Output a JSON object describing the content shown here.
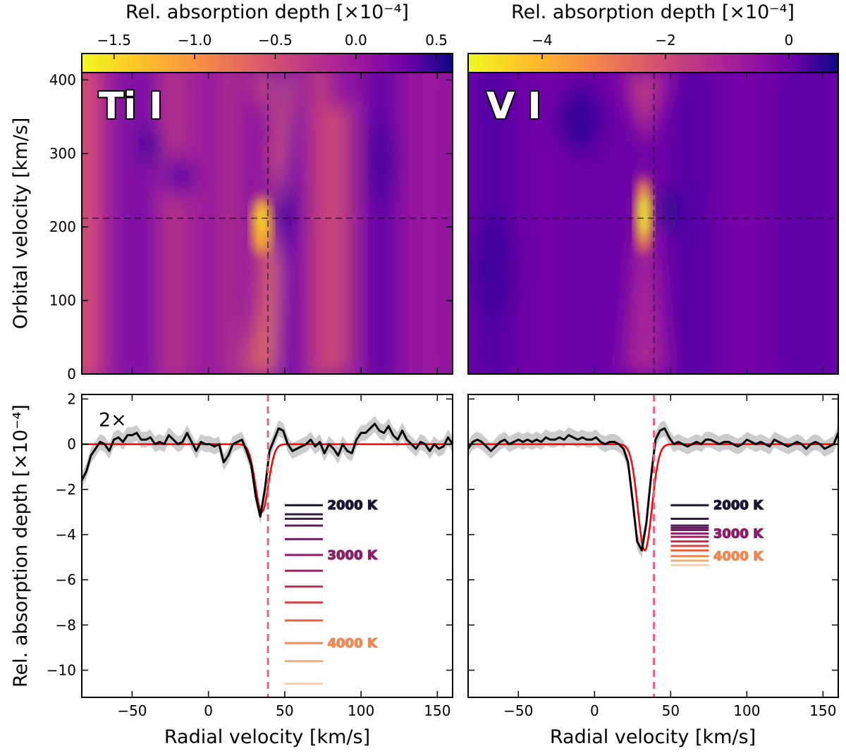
{
  "chart_data": [
    {
      "type": "heatmap",
      "panel": "top-left",
      "species": "Ti I",
      "xlabel": "Radial velocity [km/s]",
      "ylabel": "Orbital velocity [km/s]",
      "xlim": [
        -83,
        160
      ],
      "ylim": [
        0,
        410
      ],
      "yticks": [
        0,
        100,
        200,
        300,
        400
      ],
      "colorbar": {
        "label": "Rel. absorption depth [×10⁻⁴]",
        "range": [
          -1.7,
          0.6
        ],
        "ticks": [
          -1.5,
          -1.0,
          -0.5,
          0.0,
          0.5
        ],
        "tick_labels": [
          "−1.5",
          "−1.0",
          "−0.5",
          "0.0",
          "0.5"
        ],
        "colormap": "plasma_r"
      },
      "peak": {
        "x": 37,
        "y": 210,
        "depth": -1.7
      },
      "crosshair": {
        "x": 39,
        "y": 212
      }
    },
    {
      "type": "heatmap",
      "panel": "top-right",
      "species": "V I",
      "xlim": [
        -83,
        160
      ],
      "ylim": [
        0,
        410
      ],
      "colorbar": {
        "label": "Rel. absorption depth [×10⁻⁴]",
        "range": [
          -5.2,
          0.8
        ],
        "ticks": [
          -4,
          -2,
          0
        ],
        "tick_labels": [
          "−4",
          "−2",
          "0"
        ],
        "colormap": "plasma_r"
      },
      "peak": {
        "x": 33,
        "y": 210,
        "depth": -5.2
      },
      "crosshair": {
        "x": 39,
        "y": 212
      }
    },
    {
      "type": "line",
      "panel": "bottom-left",
      "annotation": "2×",
      "xlabel": "Radial velocity [km/s]",
      "ylabel": "Rel. absorption depth [×10⁻⁴]",
      "xlim": [
        -83,
        160
      ],
      "ylim": [
        -11.2,
        2.2
      ],
      "xticks": [
        -50,
        0,
        50,
        100,
        150
      ],
      "xtick_labels": [
        "−50",
        "0",
        "50",
        "100",
        "150"
      ],
      "yticks": [
        2,
        0,
        -2,
        -4,
        -6,
        -8,
        -10
      ],
      "ytick_labels": [
        "2",
        "0",
        "−2",
        "−4",
        "−6",
        "−8",
        "−10"
      ],
      "vline_x": 39,
      "series": [
        {
          "name": "observed",
          "x": [
            -83,
            -80,
            -77,
            -74,
            -71,
            -68,
            -65,
            -62,
            -59,
            -56,
            -53,
            -50,
            -47,
            -44,
            -41,
            -38,
            -35,
            -32,
            -29,
            -26,
            -23,
            -20,
            -17,
            -14,
            -11,
            -8,
            -5,
            -2,
            1,
            4,
            7,
            10,
            13,
            16,
            19,
            22,
            25,
            28,
            31,
            34,
            37,
            40,
            43,
            46,
            49,
            52,
            55,
            58,
            61,
            64,
            67,
            70,
            73,
            76,
            79,
            82,
            85,
            88,
            91,
            94,
            97,
            100,
            103,
            106,
            109,
            112,
            115,
            118,
            121,
            124,
            127,
            130,
            133,
            136,
            139,
            142,
            145,
            148,
            151,
            154,
            157,
            160
          ],
          "values": [
            -1.6,
            -1.2,
            -0.5,
            -0.2,
            0.1,
            0.0,
            -0.3,
            0.2,
            0.3,
            0.1,
            0.4,
            0.4,
            0.5,
            0.2,
            0.2,
            0.3,
            0.0,
            0.1,
            0.0,
            0.4,
            0.2,
            0.0,
            0.1,
            0.5,
            0.1,
            -0.3,
            0.1,
            0.0,
            0.0,
            -0.1,
            0.0,
            -0.8,
            -0.5,
            0.0,
            0.1,
            0.2,
            -0.3,
            -0.9,
            -2.3,
            -3.2,
            -2.0,
            -0.3,
            0.2,
            0.7,
            0.6,
            0.0,
            -0.3,
            -0.2,
            -0.1,
            0.0,
            0.2,
            -0.1,
            0.1,
            -0.4,
            0.0,
            -0.2,
            -0.5,
            0.0,
            -0.3,
            -0.4,
            0.2,
            0.5,
            0.5,
            0.7,
            0.9,
            0.6,
            0.5,
            0.8,
            0.4,
            0.2,
            0.6,
            0.2,
            0.0,
            -0.2,
            0.1,
            0.0,
            -0.3,
            0.0,
            -0.2,
            -0.1,
            0.3,
            0.0
          ]
        },
        {
          "name": "gaussian fit",
          "amplitude": -3.0,
          "center": 35,
          "sigma": 4.2
        }
      ],
      "model_temperatures": [
        {
          "depth": -2.7,
          "color": "#1b1533",
          "label": "2000 K"
        },
        {
          "depth": -3.1,
          "color": "#361a45"
        },
        {
          "depth": -3.3,
          "color": "#4b1c52"
        },
        {
          "depth": -3.6,
          "color": "#5e1d5c"
        },
        {
          "depth": -4.2,
          "color": "#721f63"
        },
        {
          "depth": -4.9,
          "color": "#8b1f67",
          "label": "3000 K"
        },
        {
          "depth": -5.6,
          "color": "#a21f66"
        },
        {
          "depth": -6.3,
          "color": "#c42a53"
        },
        {
          "depth": -7.0,
          "color": "#d93f45"
        },
        {
          "depth": -7.8,
          "color": "#e6613f"
        },
        {
          "depth": -8.8,
          "color": "#ec8a56",
          "label": "4000 K"
        },
        {
          "depth": -9.6,
          "color": "#f1ad7e"
        },
        {
          "depth": -10.6,
          "color": "#f6cfa9"
        }
      ]
    },
    {
      "type": "line",
      "panel": "bottom-right",
      "xlabel": "Radial velocity [km/s]",
      "xlim": [
        -83,
        160
      ],
      "ylim": [
        -11.2,
        2.2
      ],
      "xticks": [
        -50,
        0,
        50,
        100,
        150
      ],
      "xtick_labels": [
        "−50",
        "0",
        "50",
        "100",
        "150"
      ],
      "vline_x": 39,
      "series": [
        {
          "name": "observed",
          "x": [
            -83,
            -80,
            -77,
            -74,
            -71,
            -68,
            -65,
            -62,
            -59,
            -56,
            -53,
            -50,
            -47,
            -44,
            -41,
            -38,
            -35,
            -32,
            -29,
            -26,
            -23,
            -20,
            -17,
            -14,
            -11,
            -8,
            -5,
            -2,
            1,
            4,
            7,
            10,
            13,
            16,
            19,
            22,
            25,
            28,
            31,
            34,
            37,
            40,
            43,
            46,
            49,
            52,
            55,
            58,
            61,
            64,
            67,
            70,
            73,
            76,
            79,
            82,
            85,
            88,
            91,
            94,
            97,
            100,
            103,
            106,
            109,
            112,
            115,
            118,
            121,
            124,
            127,
            130,
            133,
            136,
            139,
            142,
            145,
            148,
            151,
            154,
            157,
            160
          ],
          "values": [
            -0.2,
            0.1,
            0.2,
            0.1,
            -0.1,
            -0.3,
            -0.1,
            0.1,
            0.2,
            0.0,
            0.1,
            0.2,
            0.1,
            0.2,
            0.1,
            0.2,
            0.1,
            0.3,
            0.2,
            0.2,
            0.3,
            0.2,
            0.4,
            0.3,
            0.2,
            0.3,
            0.2,
            0.2,
            0.3,
            0.1,
            0.0,
            0.1,
            0.1,
            0.0,
            -0.2,
            -0.8,
            -2.5,
            -4.3,
            -4.7,
            -3.5,
            -1.5,
            0.2,
            0.6,
            0.7,
            0.3,
            0.0,
            0.1,
            0.0,
            -0.1,
            0.0,
            0.1,
            0.0,
            0.2,
            0.2,
            0.1,
            0.0,
            0.1,
            0.1,
            0.0,
            -0.1,
            0.0,
            0.2,
            0.1,
            0.0,
            0.1,
            0.0,
            -0.1,
            0.2,
            0.1,
            0.0,
            -0.1,
            0.0,
            0.1,
            0.0,
            -0.2,
            0.0,
            0.1,
            0.0,
            -0.2,
            -0.1,
            0.0,
            0.5
          ]
        },
        {
          "name": "gaussian fit",
          "amplitude": -4.7,
          "center": 33,
          "sigma": 4.6
        }
      ],
      "model_temperatures": [
        {
          "depth": -2.7,
          "color": "#1b1533",
          "label": "2000 K"
        },
        {
          "depth": -3.3,
          "color": "#361a45"
        },
        {
          "depth": -3.6,
          "color": "#4b1c52"
        },
        {
          "depth": -3.7,
          "color": "#5e1d5c"
        },
        {
          "depth": -3.8,
          "color": "#721f63"
        },
        {
          "depth": -3.95,
          "color": "#8b1f67",
          "label": "3000 K"
        },
        {
          "depth": -4.1,
          "color": "#a21f66"
        },
        {
          "depth": -4.3,
          "color": "#c42a53"
        },
        {
          "depth": -4.5,
          "color": "#d93f45"
        },
        {
          "depth": -4.7,
          "color": "#e6613f"
        },
        {
          "depth": -4.95,
          "color": "#ec8a56",
          "label": "4000 K"
        },
        {
          "depth": -5.15,
          "color": "#f1ad7e"
        },
        {
          "depth": -5.35,
          "color": "#f6cfa9"
        }
      ]
    }
  ],
  "colors": {
    "data_line": "#000000",
    "error_band": "#cccccc",
    "fit_line": "#ff0000",
    "vline": "#e8637e",
    "crosshair": "#000000"
  }
}
